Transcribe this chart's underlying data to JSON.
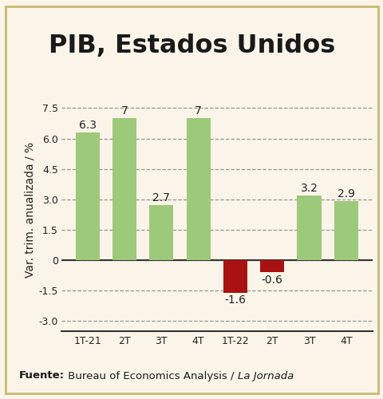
{
  "title": "PIB, Estados Unidos",
  "categories": [
    "1T-21",
    "2T",
    "3T",
    "4T",
    "1T-22",
    "2T",
    "3T",
    "4T"
  ],
  "values": [
    6.3,
    7.0,
    2.7,
    7.0,
    -1.6,
    -0.6,
    3.2,
    2.9
  ],
  "bar_colors": [
    "#9dc97a",
    "#9dc97a",
    "#9dc97a",
    "#9dc97a",
    "#aa1111",
    "#aa1111",
    "#9dc97a",
    "#9dc97a"
  ],
  "value_labels": [
    "6.3",
    "7",
    "2.7",
    "7",
    "-1.6",
    "-0.6",
    "3.2",
    "2.9"
  ],
  "ylabel": "Var. trim. anualizada / %",
  "yticks": [
    -3.0,
    -1.5,
    0,
    1.5,
    3.0,
    4.5,
    6.0,
    7.5
  ],
  "ytick_labels": [
    "-3.0",
    "-1.5",
    "0",
    "1.5",
    "3.0",
    "4.5",
    "6.0",
    "7.5"
  ],
  "ylim": [
    -3.5,
    8.5
  ],
  "source_bold": "Fuente:",
  "source_normal": " Bureau of Economics Analysis / ",
  "source_italic": "La Jornada",
  "background_color": "#faf5e8",
  "border_color": "#c8b870",
  "bar_edge_color": "none",
  "title_fontsize": 23,
  "label_fontsize": 10,
  "axis_fontsize": 9,
  "source_fontsize": 9.5
}
